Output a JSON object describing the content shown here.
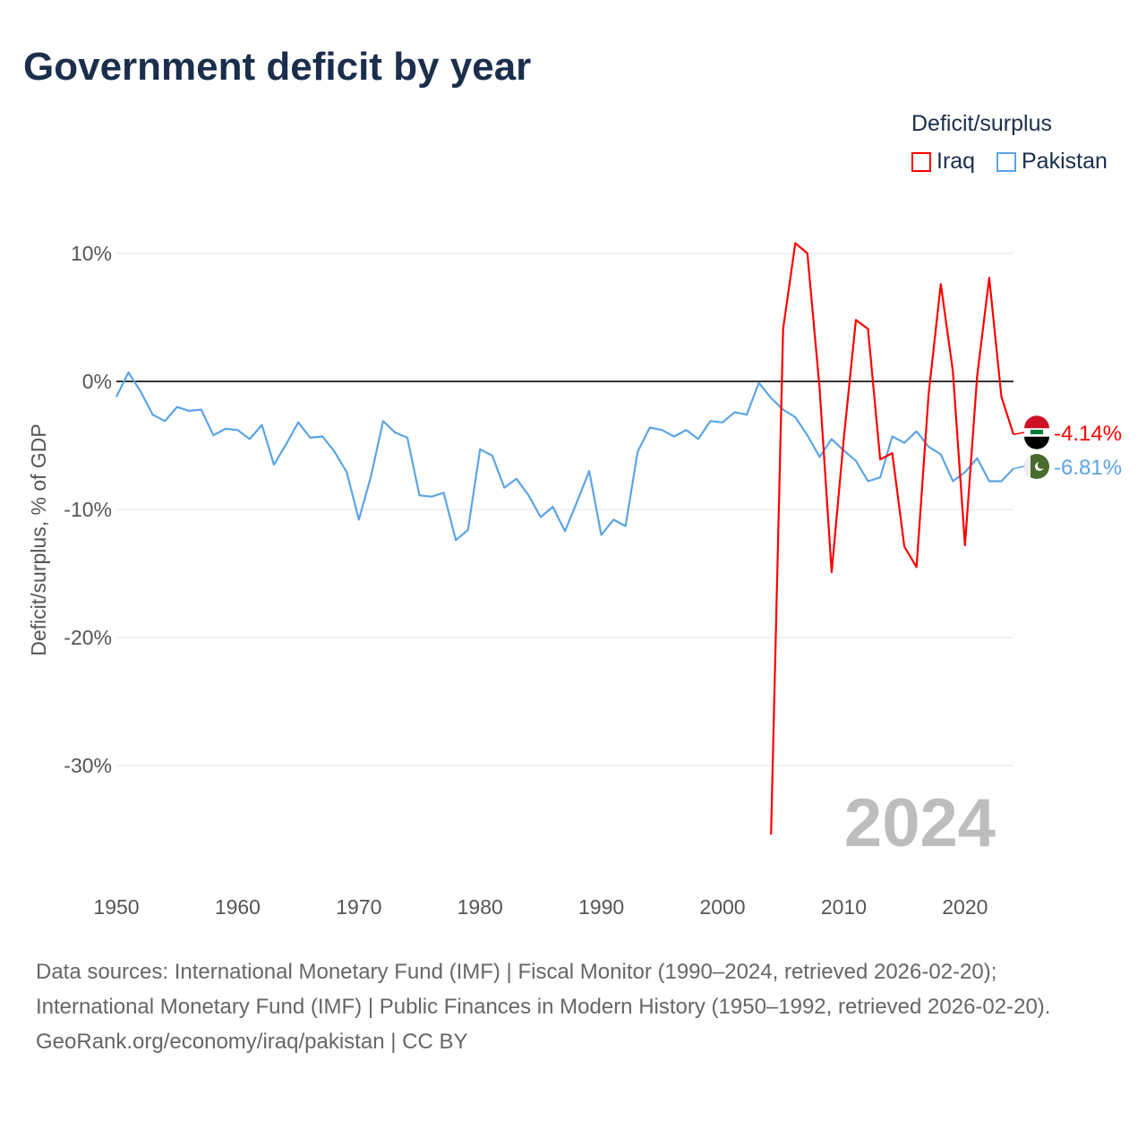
{
  "title": "Government deficit by year",
  "legend": {
    "title": "Deficit/surplus",
    "items": [
      {
        "name": "Iraq",
        "color": "#ff0000"
      },
      {
        "name": "Pakistan",
        "color": "#5ba4e6"
      }
    ]
  },
  "year_watermark": "2024",
  "footer": {
    "sources": "Data sources: International Monetary Fund (IMF) | Fiscal Monitor (1990–2024, retrieved 2026-02-20); International Monetary Fund (IMF) | Public Finances in Modern History (1950–1992, retrieved 2026-02-20).",
    "credit": "GeoRank.org/economy/iraq/pakistan | CC BY"
  },
  "chart_data": {
    "type": "line",
    "title": "Government deficit by year",
    "xlabel": "",
    "ylabel": "Deficit/surplus, % of GDP",
    "xlim": [
      1950,
      2024
    ],
    "ylim": [
      -36,
      11
    ],
    "x_ticks": [
      "1950",
      "1960",
      "1970",
      "1980",
      "1990",
      "2000",
      "2010",
      "2020"
    ],
    "y_ticks": [
      {
        "v": 10,
        "label": "10%"
      },
      {
        "v": 0,
        "label": "0%"
      },
      {
        "v": -10,
        "label": "-10%"
      },
      {
        "v": -20,
        "label": "-20%"
      },
      {
        "v": -30,
        "label": "-30%"
      }
    ],
    "legend_position": "top-right",
    "series": [
      {
        "name": "Iraq",
        "color": "#ff0000",
        "end_label": "-4.14%",
        "start_year": 2004,
        "values": [
          -35.4,
          4.1,
          10.8,
          10.0,
          -0.5,
          -14.9,
          -4.5,
          4.8,
          4.1,
          -6.1,
          -5.6,
          -12.9,
          -14.5,
          -1.0,
          7.6,
          0.8,
          -12.8,
          0.4,
          8.1,
          -1.2,
          -4.14
        ]
      },
      {
        "name": "Pakistan",
        "color": "#5ba4e6",
        "end_label": "-6.81%",
        "start_year": 1950,
        "values": [
          -1.2,
          0.7,
          -0.8,
          -2.6,
          -3.1,
          -2.0,
          -2.3,
          -2.2,
          -4.2,
          -3.7,
          -3.8,
          -4.5,
          -3.4,
          -6.5,
          -4.9,
          -3.2,
          -4.4,
          -4.3,
          -5.5,
          -7.1,
          -10.8,
          -7.4,
          -3.1,
          -4.0,
          -4.4,
          -8.9,
          -9.0,
          -8.7,
          -12.4,
          -11.6,
          -5.3,
          -5.8,
          -8.3,
          -7.6,
          -8.9,
          -10.6,
          -9.8,
          -11.7,
          -9.4,
          -7.0,
          -12.0,
          -10.8,
          -11.3,
          -5.5,
          -3.6,
          -3.8,
          -4.3,
          -3.8,
          -4.5,
          -3.1,
          -3.2,
          -2.4,
          -2.6,
          -0.1,
          -1.3,
          -2.2,
          -2.8,
          -4.2,
          -5.9,
          -4.5,
          -5.4,
          -6.2,
          -7.8,
          -7.5,
          -4.3,
          -4.8,
          -3.9,
          -5.1,
          -5.7,
          -7.8,
          -7.1,
          -6.0,
          -7.8,
          -7.8,
          -6.81
        ]
      }
    ]
  }
}
